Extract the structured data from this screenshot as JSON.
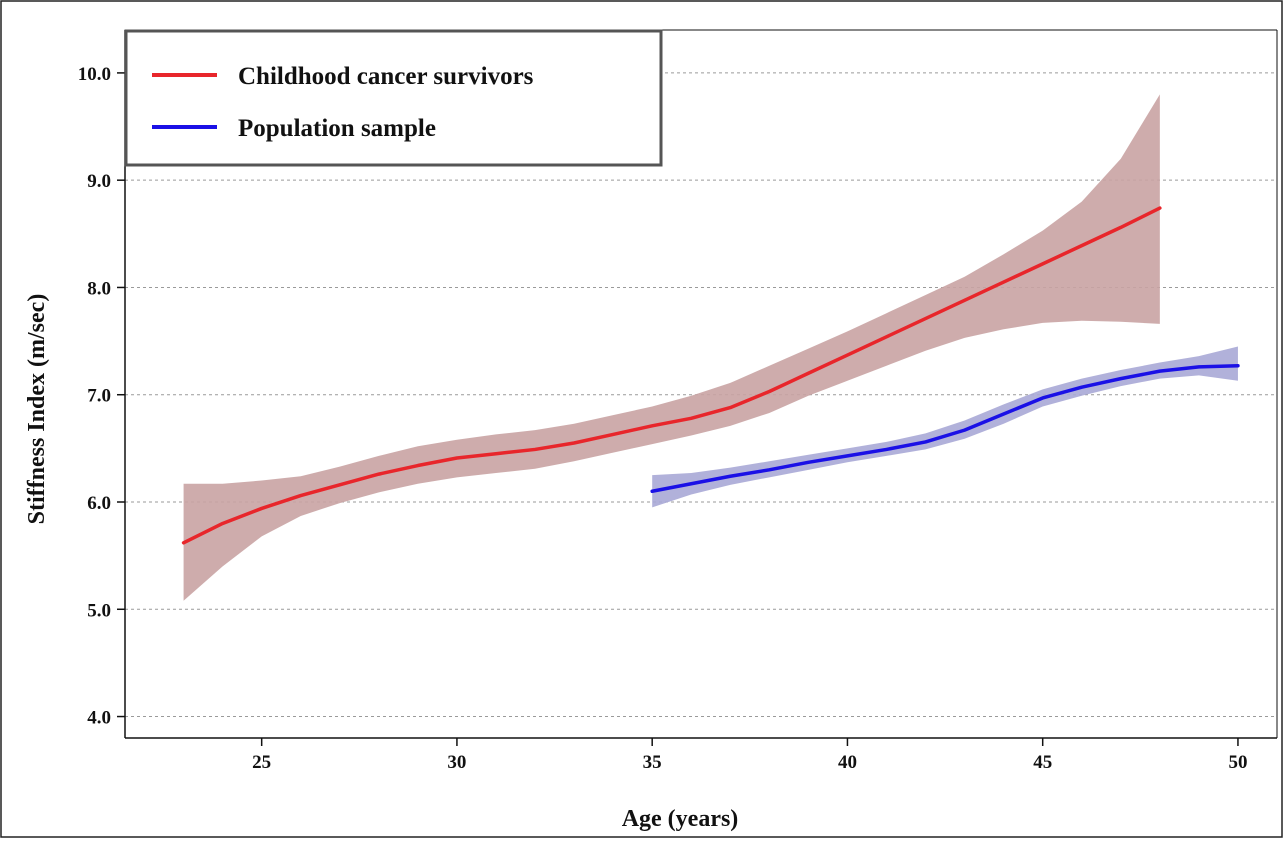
{
  "chart_data": {
    "type": "line",
    "title": "",
    "xlabel": "Age (years)",
    "ylabel": "Stiffness Index (m/sec)",
    "xlim": [
      21.5,
      51
    ],
    "ylim": [
      3.8,
      10.4
    ],
    "x_ticks": [
      25,
      30,
      35,
      40,
      45,
      50
    ],
    "x_tick_labels": [
      "25",
      "30",
      "35",
      "40",
      "45",
      "50"
    ],
    "y_ticks": [
      4,
      5,
      6,
      7,
      8,
      9,
      10
    ],
    "y_tick_labels": [
      "4.0",
      "5.0",
      "6.0",
      "7.0",
      "8.0",
      "9.0",
      "10.0"
    ],
    "grid": "horizontal dotted",
    "legend_position": "top-left",
    "series": [
      {
        "name": "Childhood cancer survivors",
        "color": "#e8262b",
        "band_color": "#c9a3a3",
        "x": [
          23,
          24,
          25,
          26,
          27,
          28,
          29,
          30,
          31,
          32,
          33,
          34,
          35,
          36,
          37,
          38,
          39,
          40,
          41,
          42,
          43,
          44,
          45,
          46,
          47,
          48
        ],
        "y": [
          5.62,
          5.8,
          5.94,
          6.06,
          6.16,
          6.26,
          6.34,
          6.41,
          6.45,
          6.49,
          6.55,
          6.63,
          6.71,
          6.78,
          6.88,
          7.03,
          7.2,
          7.37,
          7.54,
          7.71,
          7.88,
          8.05,
          8.22,
          8.39,
          8.56,
          8.74
        ],
        "lower": [
          5.08,
          5.4,
          5.68,
          5.87,
          5.99,
          6.09,
          6.17,
          6.23,
          6.27,
          6.31,
          6.38,
          6.46,
          6.54,
          6.62,
          6.71,
          6.83,
          6.99,
          7.13,
          7.27,
          7.41,
          7.53,
          7.61,
          7.67,
          7.69,
          7.68,
          7.66
        ],
        "upper": [
          6.17,
          6.17,
          6.2,
          6.24,
          6.33,
          6.43,
          6.52,
          6.58,
          6.63,
          6.67,
          6.73,
          6.81,
          6.89,
          6.99,
          7.11,
          7.27,
          7.43,
          7.59,
          7.76,
          7.93,
          8.1,
          8.31,
          8.53,
          8.8,
          9.2,
          9.8
        ]
      },
      {
        "name": "Population sample",
        "color": "#1a10e6",
        "band_color": "#a8a8d6",
        "x": [
          35,
          36,
          37,
          38,
          39,
          40,
          41,
          42,
          43,
          44,
          45,
          46,
          47,
          48,
          49,
          50
        ],
        "y": [
          6.1,
          6.17,
          6.24,
          6.3,
          6.37,
          6.43,
          6.49,
          6.56,
          6.67,
          6.82,
          6.97,
          7.07,
          7.15,
          7.22,
          7.26,
          7.27
        ],
        "lower": [
          5.95,
          6.07,
          6.16,
          6.23,
          6.3,
          6.37,
          6.43,
          6.49,
          6.59,
          6.73,
          6.89,
          6.99,
          7.08,
          7.15,
          7.18,
          7.13
        ],
        "upper": [
          6.25,
          6.27,
          6.32,
          6.38,
          6.44,
          6.5,
          6.56,
          6.64,
          6.76,
          6.91,
          7.05,
          7.15,
          7.23,
          7.3,
          7.36,
          7.45
        ]
      }
    ]
  }
}
